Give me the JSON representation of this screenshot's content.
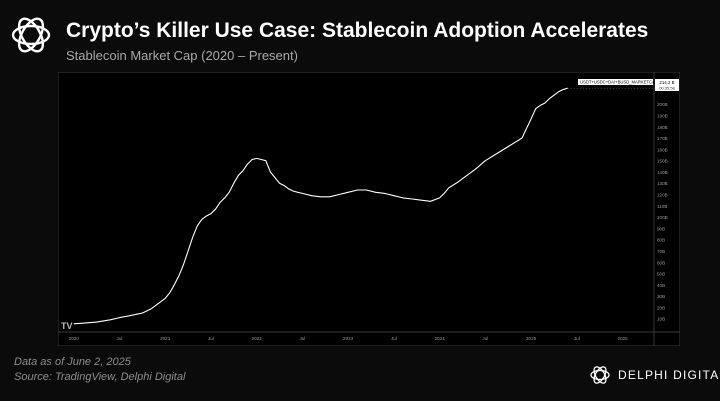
{
  "header": {
    "title": "Crypto’s Killer Use Case: Stablecoin Adoption Accelerates",
    "subtitle": "Stablecoin Market Cap (2020 – Present)"
  },
  "footer": {
    "date_note": "Data as of June 2, 2025",
    "source_note": "Source: TradingView, Delphi Digital",
    "brand_name": "DELPHI DIGITAL"
  },
  "colors": {
    "background": "#0b0b0b",
    "line": "#ffffff",
    "muted_text": "#8d8d8d"
  },
  "icons": {
    "logo": "delphi-logo-icon",
    "brand_mark": "delphi-mark-icon"
  },
  "chart_data": {
    "type": "line",
    "title": "",
    "xlabel": "",
    "ylabel": "",
    "legend": "USDT+USDC+DAI+BUSD_MARKETCAP",
    "last_value_label": "214.2 B",
    "countdown_label": "00:35:58",
    "x_tick_labels": [
      "2020",
      "Jul",
      "2021",
      "Jul",
      "2022",
      "Jul",
      "2023",
      "Jul",
      "2024",
      "Jul",
      "2025",
      "Jul",
      "2026"
    ],
    "x_tick_values": [
      2020.0,
      2020.5,
      2021.0,
      2021.5,
      2022.0,
      2022.5,
      2023.0,
      2023.5,
      2024.0,
      2024.5,
      2025.0,
      2025.5,
      2026.0
    ],
    "xlim": [
      2019.85,
      2026.3
    ],
    "y_tick_labels": [
      "10B",
      "20B",
      "30B",
      "40B",
      "50B",
      "60B",
      "70B",
      "80B",
      "90B",
      "100B",
      "110B",
      "120B",
      "130B",
      "140B",
      "150B",
      "160B",
      "170B",
      "180B",
      "190B",
      "200B",
      "220B"
    ],
    "y_tick_values": [
      10,
      20,
      30,
      40,
      50,
      60,
      70,
      80,
      90,
      100,
      110,
      120,
      130,
      140,
      150,
      160,
      170,
      180,
      190,
      200,
      220
    ],
    "ylim": [
      0,
      225
    ],
    "grid": false,
    "series": [
      {
        "name": "USDT+USDC+DAI+BUSD_MARKETCAP",
        "x": [
          2020.0,
          2020.1,
          2020.25,
          2020.4,
          2020.5,
          2020.6,
          2020.75,
          2020.85,
          2020.95,
          2021.0,
          2021.05,
          2021.1,
          2021.15,
          2021.2,
          2021.25,
          2021.3,
          2021.35,
          2021.4,
          2021.45,
          2021.5,
          2021.55,
          2021.6,
          2021.65,
          2021.7,
          2021.75,
          2021.8,
          2021.85,
          2021.9,
          2021.95,
          2022.0,
          2022.05,
          2022.1,
          2022.15,
          2022.2,
          2022.25,
          2022.3,
          2022.35,
          2022.4,
          2022.45,
          2022.5,
          2022.6,
          2022.7,
          2022.8,
          2022.9,
          2023.0,
          2023.1,
          2023.2,
          2023.3,
          2023.4,
          2023.5,
          2023.6,
          2023.7,
          2023.8,
          2023.9,
          2024.0,
          2024.05,
          2024.1,
          2024.2,
          2024.3,
          2024.4,
          2024.5,
          2024.6,
          2024.7,
          2024.8,
          2024.9,
          2025.0,
          2025.05,
          2025.1,
          2025.15,
          2025.2,
          2025.25,
          2025.3,
          2025.35,
          2025.4
        ],
        "y": [
          5.5,
          6,
          7,
          9,
          11,
          12.5,
          15,
          19,
          25,
          28,
          33,
          40,
          48,
          58,
          70,
          82,
          92,
          98,
          101,
          103,
          107,
          113,
          117,
          122,
          130,
          137,
          141,
          147,
          151,
          152,
          151,
          150,
          140,
          135,
          130,
          128,
          125,
          123,
          122,
          121,
          119,
          118,
          118,
          120,
          122,
          124,
          124,
          122,
          121,
          119,
          117,
          116,
          115,
          114,
          117,
          121,
          126,
          131,
          137,
          143,
          150,
          155,
          160,
          165,
          170,
          187,
          196,
          199,
          201,
          205,
          208,
          211,
          213,
          214.2
        ]
      }
    ]
  }
}
